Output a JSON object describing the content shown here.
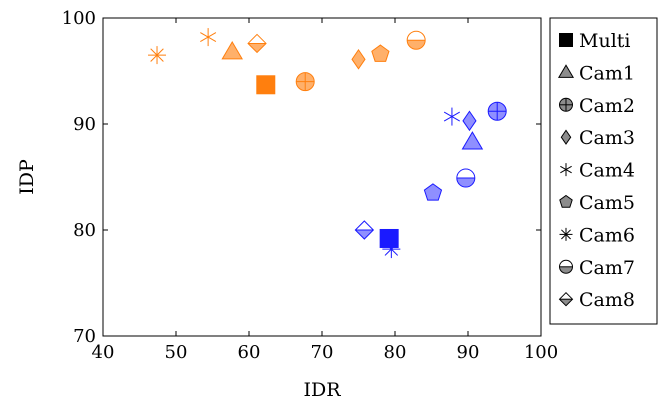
{
  "colors": {
    "orange": "#ff7f0e",
    "orange_fill": "#ffb06a",
    "blue": "#1a1aff",
    "blue_fill": "#8f8fff",
    "legend_stroke": "#000000",
    "legend_fill": "#8c8c8c"
  },
  "chart_data": {
    "type": "scatter",
    "xlabel": "IDR",
    "ylabel": "IDP",
    "xlim": [
      40,
      100
    ],
    "ylim": [
      70,
      100
    ],
    "x_ticks": [
      40,
      50,
      60,
      70,
      80,
      90,
      100
    ],
    "y_ticks": [
      70,
      80,
      90,
      100
    ],
    "grid": false,
    "legend_position": "outside-right",
    "legend": [
      {
        "label": "Multi",
        "marker": "square"
      },
      {
        "label": "Cam1",
        "marker": "triangle"
      },
      {
        "label": "Cam2",
        "marker": "oplus"
      },
      {
        "label": "Cam3",
        "marker": "diamond"
      },
      {
        "label": "Cam4",
        "marker": "star6"
      },
      {
        "label": "Cam5",
        "marker": "pentagon"
      },
      {
        "label": "Cam6",
        "marker": "asterisk"
      },
      {
        "label": "Cam7",
        "marker": "halfcircle"
      },
      {
        "label": "Cam8",
        "marker": "halfdiamond"
      }
    ],
    "series": [
      {
        "color_key": "orange",
        "points": [
          {
            "marker": "square",
            "x": 62.3,
            "y": 93.7
          },
          {
            "marker": "triangle",
            "x": 57.7,
            "y": 96.8
          },
          {
            "marker": "oplus",
            "x": 67.7,
            "y": 94.0
          },
          {
            "marker": "diamond",
            "x": 75.0,
            "y": 96.1
          },
          {
            "marker": "star6",
            "x": 54.4,
            "y": 98.2
          },
          {
            "marker": "pentagon",
            "x": 78.0,
            "y": 96.6
          },
          {
            "marker": "asterisk",
            "x": 47.4,
            "y": 96.5
          },
          {
            "marker": "halfcircle",
            "x": 82.9,
            "y": 97.9
          },
          {
            "marker": "halfdiamond",
            "x": 61.1,
            "y": 97.6
          }
        ]
      },
      {
        "color_key": "blue",
        "points": [
          {
            "marker": "square",
            "x": 79.2,
            "y": 79.2
          },
          {
            "marker": "triangle",
            "x": 90.6,
            "y": 88.3
          },
          {
            "marker": "oplus",
            "x": 94.0,
            "y": 91.2
          },
          {
            "marker": "diamond",
            "x": 90.2,
            "y": 90.3
          },
          {
            "marker": "star6",
            "x": 87.8,
            "y": 90.7
          },
          {
            "marker": "pentagon",
            "x": 85.2,
            "y": 83.5
          },
          {
            "marker": "asterisk",
            "x": 79.5,
            "y": 78.2
          },
          {
            "marker": "halfcircle",
            "x": 89.7,
            "y": 84.9
          },
          {
            "marker": "halfdiamond",
            "x": 75.8,
            "y": 80.0
          }
        ]
      }
    ]
  }
}
